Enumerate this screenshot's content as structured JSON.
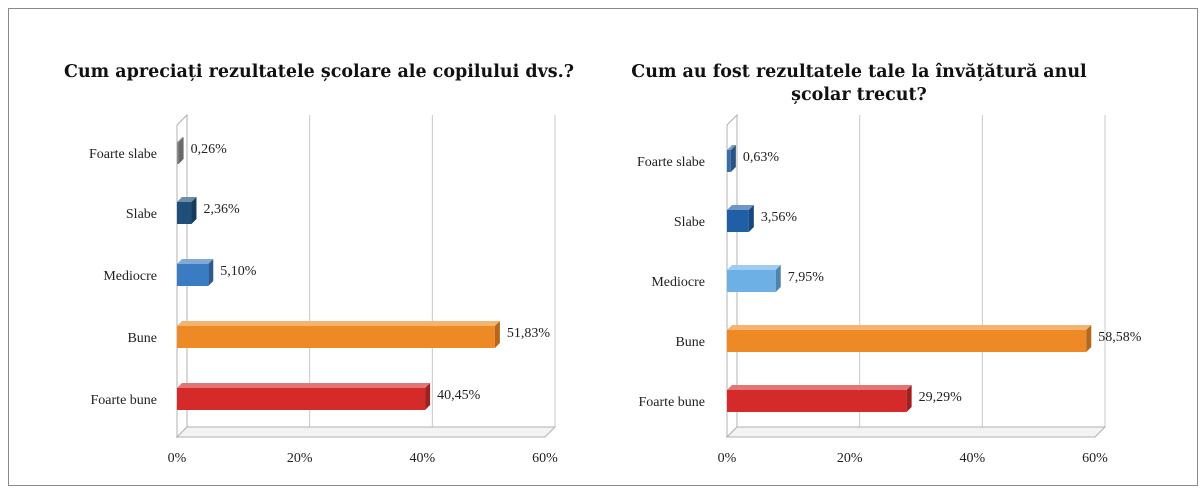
{
  "chart_data": [
    {
      "type": "bar",
      "orientation": "horizontal",
      "title": "Cum apreciați rezultatele școlare ale copilului dvs.?",
      "categories": [
        "Foarte slabe",
        "Slabe",
        "Mediocre",
        "Bune",
        "Foarte bune"
      ],
      "values": [
        0.26,
        2.36,
        5.1,
        51.83,
        40.45
      ],
      "value_labels": [
        "0,26%",
        "2,36%",
        "5,10%",
        "51,83%",
        "40,45%"
      ],
      "bar_colors": [
        "#8c8c8c",
        "#1f4e79",
        "#3a7cc1",
        "#ee8a25",
        "#d42a2a"
      ],
      "xlim": [
        0,
        60
      ],
      "x_ticks": [
        "0%",
        "20%",
        "40%",
        "60%"
      ],
      "grid": true,
      "legend": "none"
    },
    {
      "type": "bar",
      "orientation": "horizontal",
      "title": "Cum au fost rezultatele tale la învățătură anul școlar trecut?",
      "categories": [
        "Foarte slabe",
        "Slabe",
        "Mediocre",
        "Bune",
        "Foarte bune"
      ],
      "values": [
        0.63,
        3.56,
        7.95,
        58.58,
        29.29
      ],
      "value_labels": [
        "0,63%",
        "3,56%",
        "7,95%",
        "58,58%",
        "29,29%"
      ],
      "bar_colors": [
        "#3a6ea8",
        "#1f5fa6",
        "#6cb0e6",
        "#ee8a25",
        "#d42a2a"
      ],
      "xlim": [
        0,
        60
      ],
      "x_ticks": [
        "0%",
        "20%",
        "40%",
        "60%"
      ],
      "grid": true,
      "legend": "none"
    }
  ]
}
